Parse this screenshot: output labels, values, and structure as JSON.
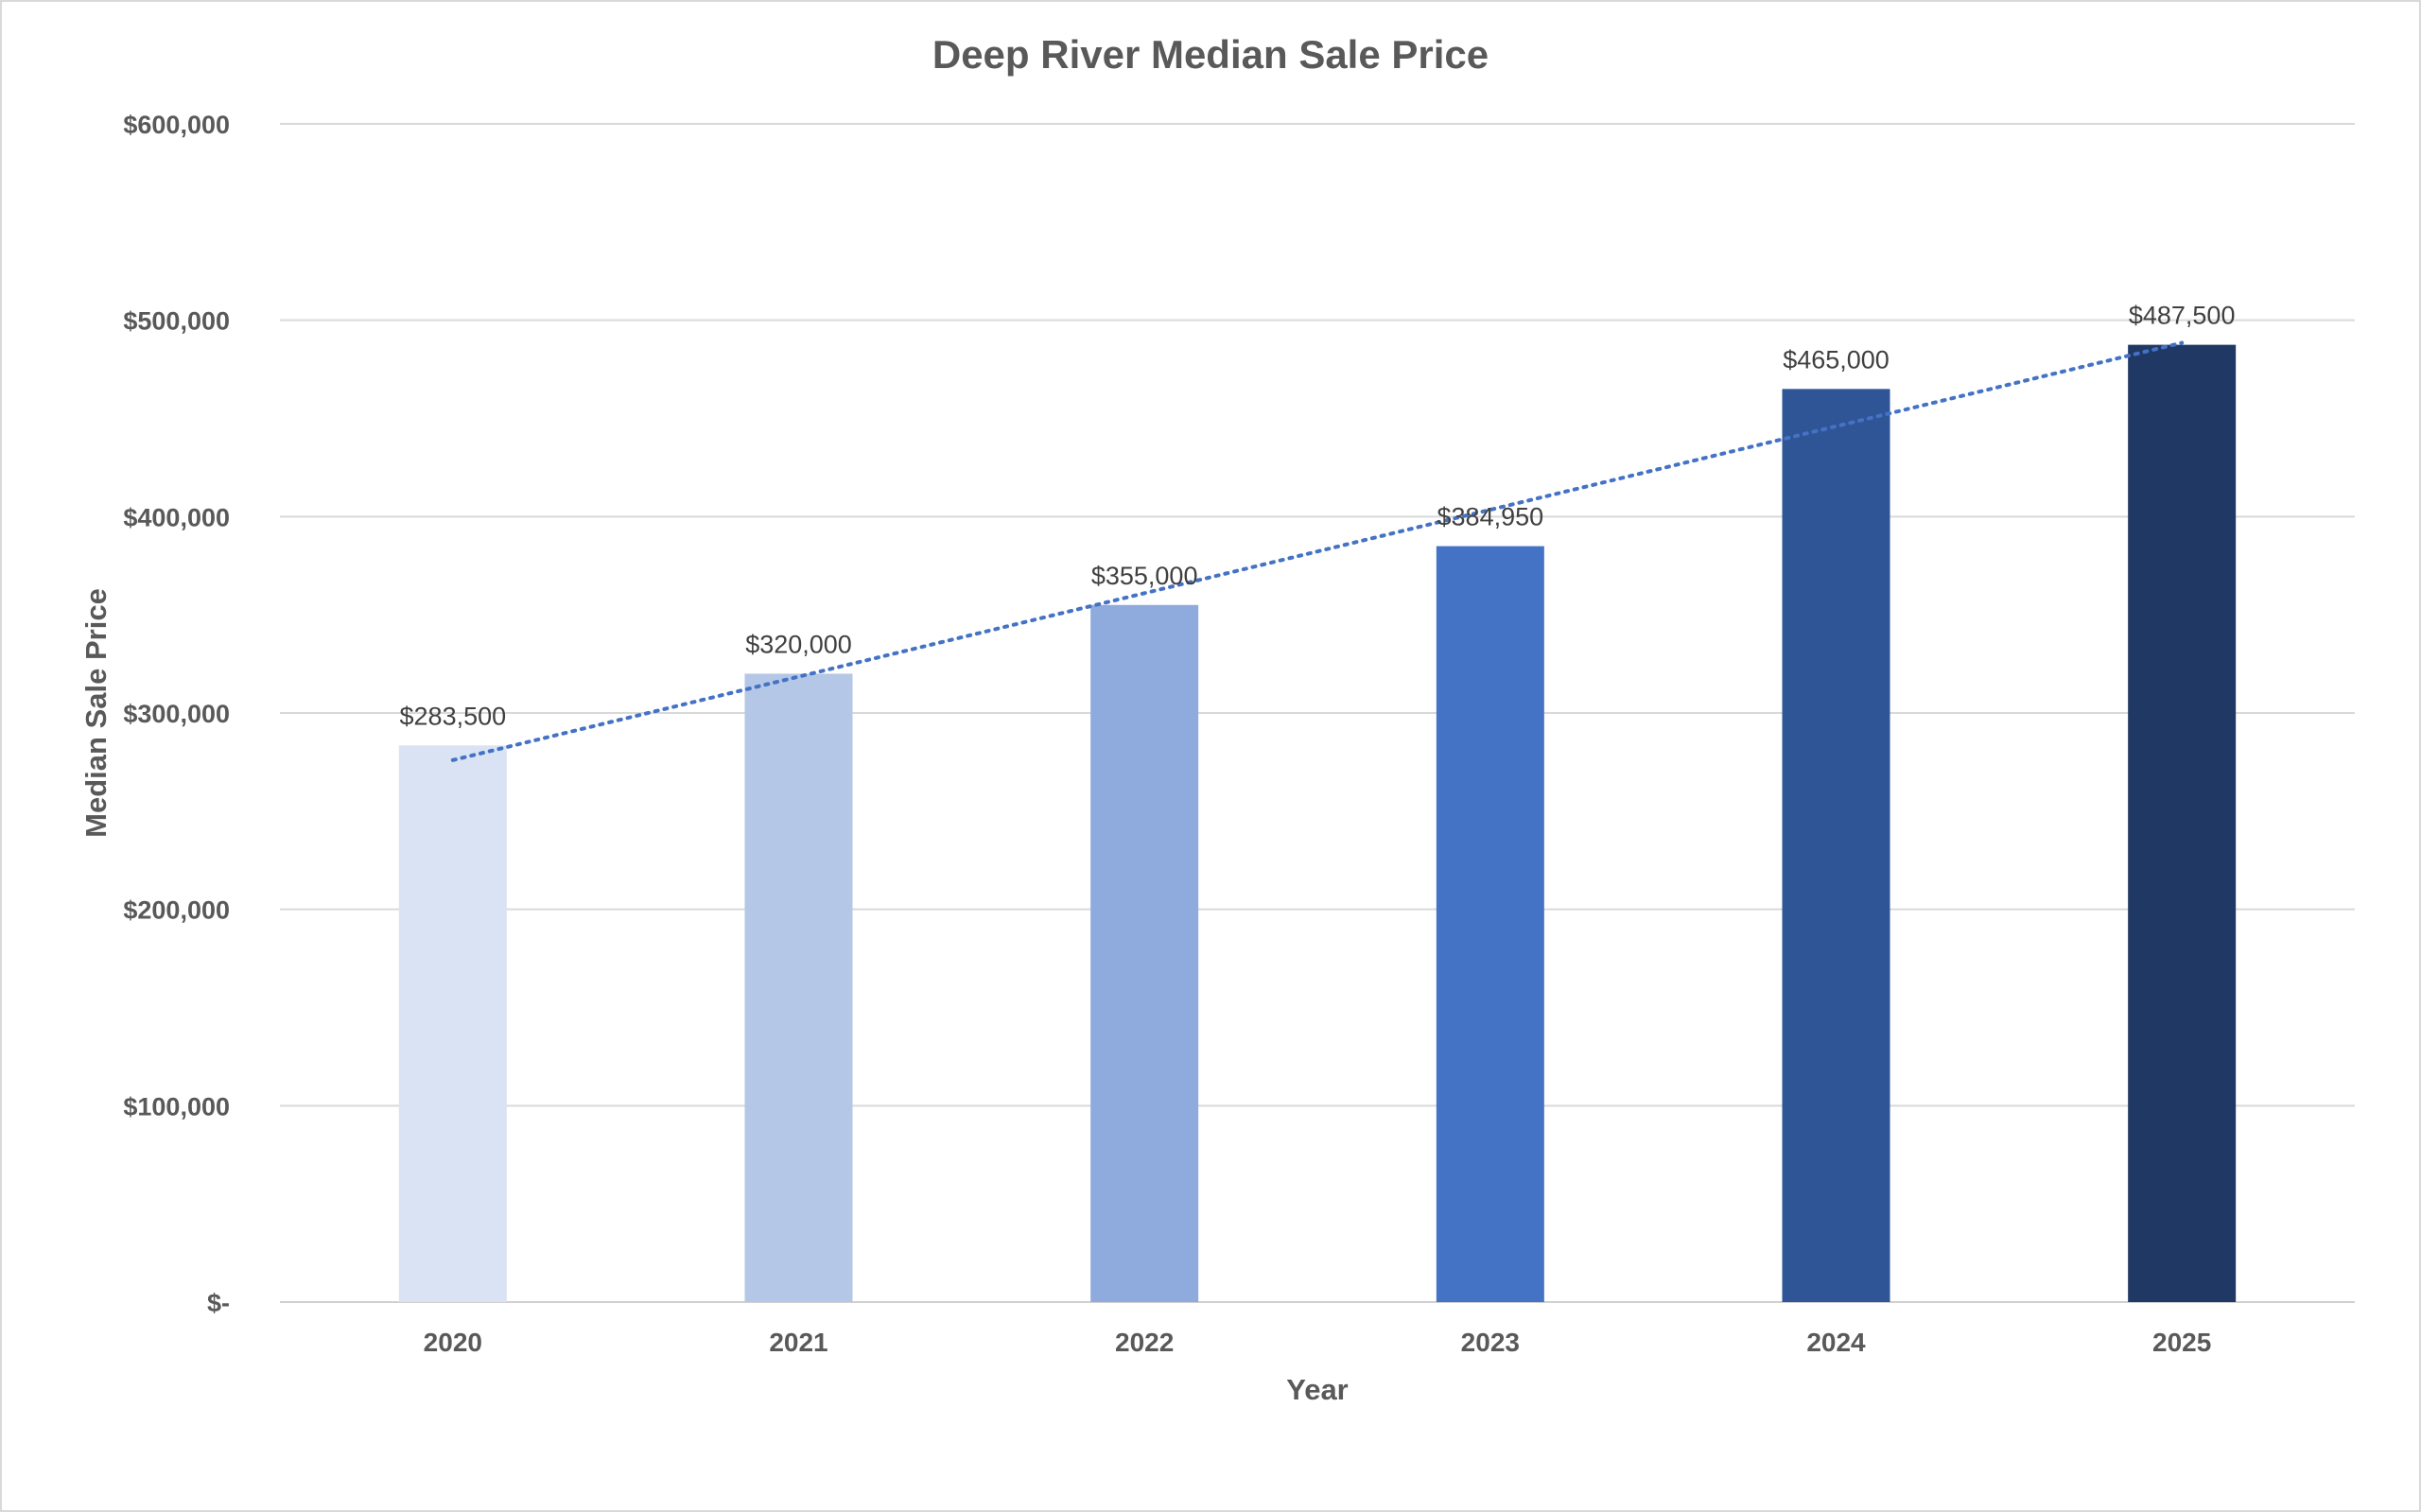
{
  "chart_data": {
    "type": "bar",
    "title": "Deep River Median Sale Price",
    "xlabel": "Year",
    "ylabel": "Median Sale Price",
    "categories": [
      "2020",
      "2021",
      "2022",
      "2023",
      "2024",
      "2025"
    ],
    "values": [
      283500,
      320000,
      355000,
      384950,
      465000,
      487500
    ],
    "data_labels": [
      "$283,500",
      "$320,000",
      "$355,000",
      "$384,950",
      "$465,000",
      "$487,500"
    ],
    "bar_colors": [
      "#dae3f3",
      "#b4c7e7",
      "#8faadc",
      "#4472c4",
      "#2f5597",
      "#203864"
    ],
    "ylim": [
      0,
      600000
    ],
    "y_ticks": [
      0,
      100000,
      200000,
      300000,
      400000,
      500000,
      600000
    ],
    "y_tick_labels": [
      "$-",
      "$100,000",
      "$200,000",
      "$300,000",
      "$400,000",
      "$500,000",
      "$600,000"
    ],
    "grid": true,
    "legend": "none",
    "trendline": {
      "type": "linear",
      "style": "dotted",
      "color": "#4472c4",
      "start": 276000,
      "end": 488500
    }
  }
}
